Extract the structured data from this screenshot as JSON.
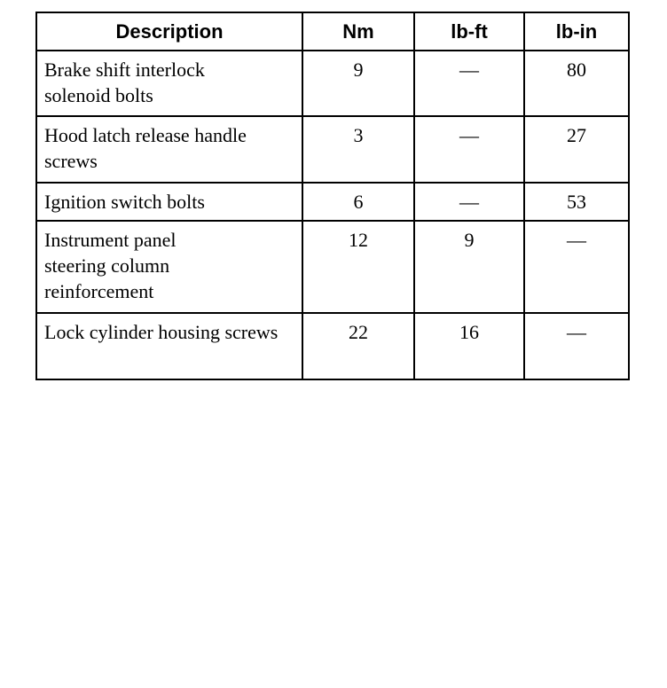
{
  "table": {
    "headers": [
      "Description",
      "Nm",
      "lb-ft",
      "lb-in"
    ],
    "rows": [
      {
        "description": "Brake shift interlock solenoid bolts",
        "nm": "9",
        "lbft": "—",
        "lbin": "80"
      },
      {
        "description": "Hood latch release handle screws",
        "nm": "3",
        "lbft": "—",
        "lbin": "27"
      },
      {
        "description": "Ignition switch bolts",
        "nm": "6",
        "lbft": "—",
        "lbin": "53"
      },
      {
        "description": "Instrument panel steering column reinforcement",
        "nm": "12",
        "lbft": "9",
        "lbin": "—"
      },
      {
        "description": "Lock cylinder housing screws",
        "nm": "22",
        "lbft": "16",
        "lbin": "—"
      }
    ]
  }
}
